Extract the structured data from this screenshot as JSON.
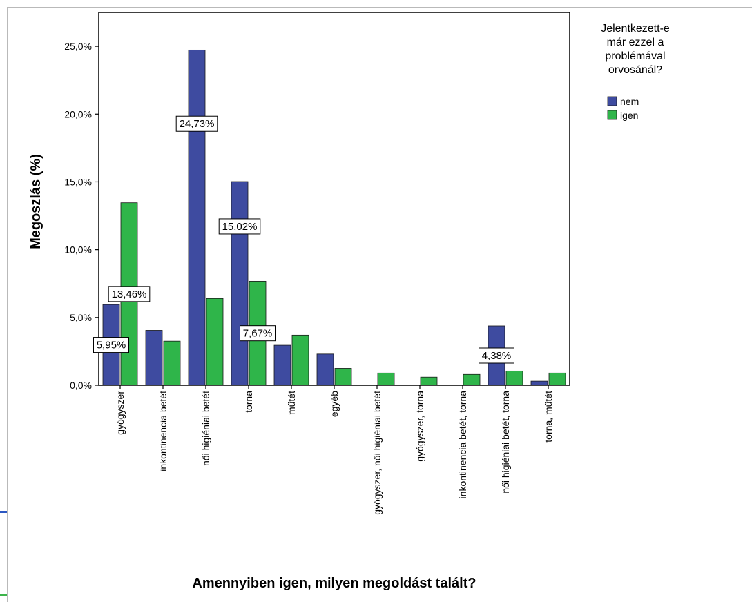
{
  "chart_data": {
    "type": "bar",
    "xlabel": "Amennyiben igen, milyen megoldást talált?",
    "ylabel": "Megoszlás (%)",
    "ylim": [
      0,
      27.5
    ],
    "yticks": [
      "0,0%",
      "5,0%",
      "10,0%",
      "15,0%",
      "20,0%",
      "25,0%"
    ],
    "ytick_values": [
      0,
      5,
      10,
      15,
      20,
      25
    ],
    "grid": false,
    "legend": {
      "title_lines": [
        "Jelentkezett-e",
        "már ezzel a",
        "problémával",
        "orvosánál?"
      ],
      "placement": "right"
    },
    "categories": [
      "gyógyszer",
      "inkontinencia betét",
      "női higiéniai betét",
      "torna",
      "műtét",
      "egyéb",
      "gyógyszer, női higiéniai betét",
      "gyógyszer, torna",
      "inkontinencia betét, torna",
      "női higiéniai betét, torna",
      "torna, műtét"
    ],
    "series": [
      {
        "name": "nem",
        "color": "#3e4ba0",
        "values": [
          5.95,
          4.05,
          24.73,
          15.02,
          2.95,
          2.3,
          0,
          0,
          0,
          4.38,
          0.3
        ]
      },
      {
        "name": "igen",
        "color": "#2fb54a",
        "values": [
          13.46,
          3.25,
          6.4,
          7.67,
          3.7,
          1.25,
          0.9,
          0.6,
          0.8,
          1.05,
          0.9
        ]
      }
    ],
    "data_labels": [
      {
        "series": 0,
        "index": 0,
        "text": "5,95%"
      },
      {
        "series": 1,
        "index": 0,
        "text": "13,46%"
      },
      {
        "series": 0,
        "index": 2,
        "text": "24,73%"
      },
      {
        "series": 0,
        "index": 3,
        "text": "15,02%"
      },
      {
        "series": 1,
        "index": 3,
        "text": "7,67%"
      },
      {
        "series": 0,
        "index": 9,
        "text": "4,38%"
      }
    ]
  }
}
